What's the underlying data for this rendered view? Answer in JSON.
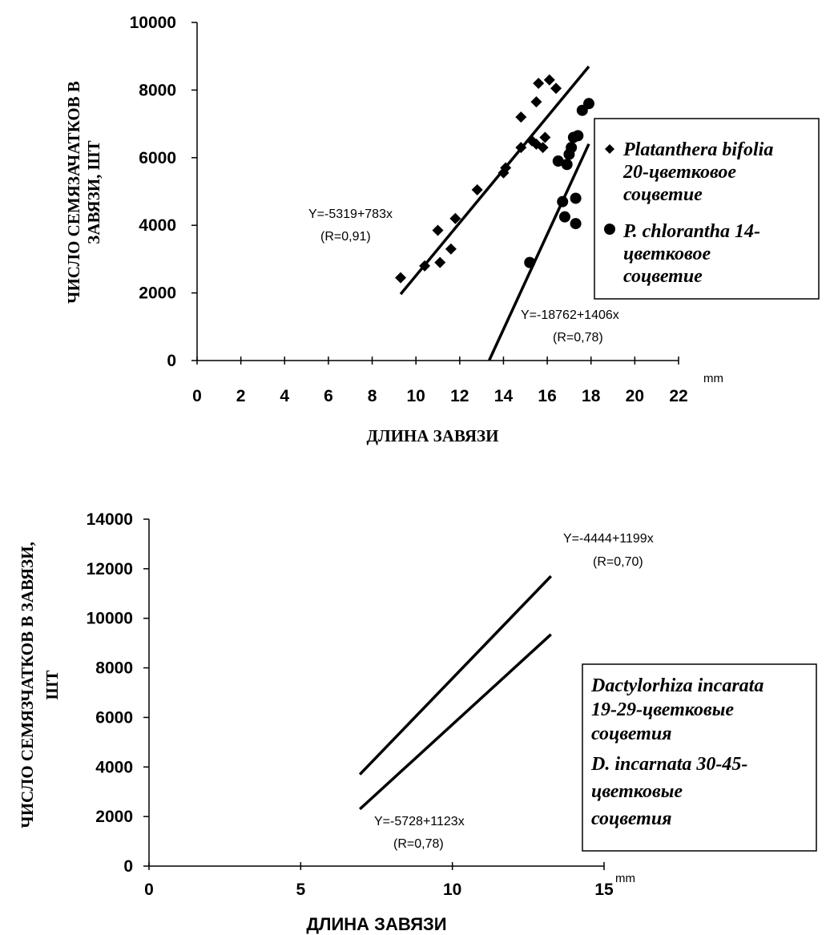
{
  "chart_data": [
    {
      "type": "scatter",
      "ylabel": [
        "ЧИСЛО СЕМЯЗАЧАТКОВ В",
        "ЗАВЯЗИ, ШТ"
      ],
      "xlabel": "ДЛИНА ЗАВЯЗИ",
      "x_unit": "mm",
      "xlim": [
        0,
        22
      ],
      "ylim": [
        0,
        10000
      ],
      "x_ticks": [
        "0",
        "2",
        "4",
        "6",
        "8",
        "10",
        "12",
        "14",
        "16",
        "18",
        "20",
        "22"
      ],
      "y_ticks": [
        "0",
        "2000",
        "4000",
        "6000",
        "8000",
        "10000"
      ],
      "series": [
        {
          "name": [
            "Platanthera bifolia",
            "20-цветковое",
            "соцветие"
          ],
          "marker": "diamond",
          "points": [
            [
              9.3,
              2450
            ],
            [
              10.4,
              2800
            ],
            [
              11.0,
              3850
            ],
            [
              11.1,
              2900
            ],
            [
              11.6,
              3300
            ],
            [
              11.8,
              4200
            ],
            [
              12.8,
              5050
            ],
            [
              14.0,
              5550
            ],
            [
              14.1,
              5700
            ],
            [
              14.8,
              6300
            ],
            [
              14.8,
              7200
            ],
            [
              15.3,
              6500
            ],
            [
              15.5,
              7650
            ],
            [
              15.5,
              6400
            ],
            [
              15.6,
              8200
            ],
            [
              15.8,
              6300
            ],
            [
              15.9,
              6600
            ],
            [
              16.1,
              8300
            ],
            [
              16.4,
              8050
            ]
          ],
          "fit": {
            "x": [
              9.3,
              17.9
            ],
            "label": [
              "Y=-5319+783x",
              "(R=0,91)"
            ]
          }
        },
        {
          "name": [
            "P. chlorantha 14-",
            "цветковое",
            "соцветие"
          ],
          "marker": "circle",
          "points": [
            [
              15.2,
              2900
            ],
            [
              16.5,
              5900
            ],
            [
              16.7,
              4700
            ],
            [
              16.8,
              4250
            ],
            [
              16.9,
              5800
            ],
            [
              17.0,
              6100
            ],
            [
              17.1,
              6300
            ],
            [
              17.2,
              6600
            ],
            [
              17.3,
              4800
            ],
            [
              17.3,
              4050
            ],
            [
              17.4,
              6650
            ],
            [
              17.6,
              7400
            ],
            [
              17.9,
              7600
            ]
          ],
          "fit": {
            "x": [
              13.35,
              17.9
            ],
            "label": [
              "Y=-18762+1406x",
              "(R=0,78)"
            ]
          }
        }
      ]
    },
    {
      "type": "line",
      "ylabel": [
        "ЧИСЛО СЕМЯЗЧАТКОВ В ЗАВЯЗИ,",
        "ШТ"
      ],
      "xlabel": "ДЛИНА ЗАВЯЗИ",
      "x_unit": "mm",
      "xlim": [
        0,
        15
      ],
      "ylim": [
        0,
        14000
      ],
      "x_ticks": [
        "0",
        "5",
        "10",
        "15"
      ],
      "y_ticks": [
        "0",
        "2000",
        "4000",
        "6000",
        "8000",
        "10000",
        "12000",
        "14000"
      ],
      "series": [
        {
          "name": [
            "Dactylorhiza incarata",
            "19-29-цветковые",
            "соцветия"
          ],
          "x": [
            6.95,
            13.25
          ],
          "y": [
            3700,
            11700
          ],
          "label": [
            "Y=-4444+1199x",
            "(R=0,70)"
          ]
        },
        {
          "name": [
            "D. incarnata 30-45-",
            "цветковые",
            "соцветия"
          ],
          "x": [
            6.95,
            13.25
          ],
          "y": [
            2300,
            9350
          ],
          "label": [
            "Y=-5728+1123x",
            "(R=0,78)"
          ]
        }
      ]
    }
  ]
}
